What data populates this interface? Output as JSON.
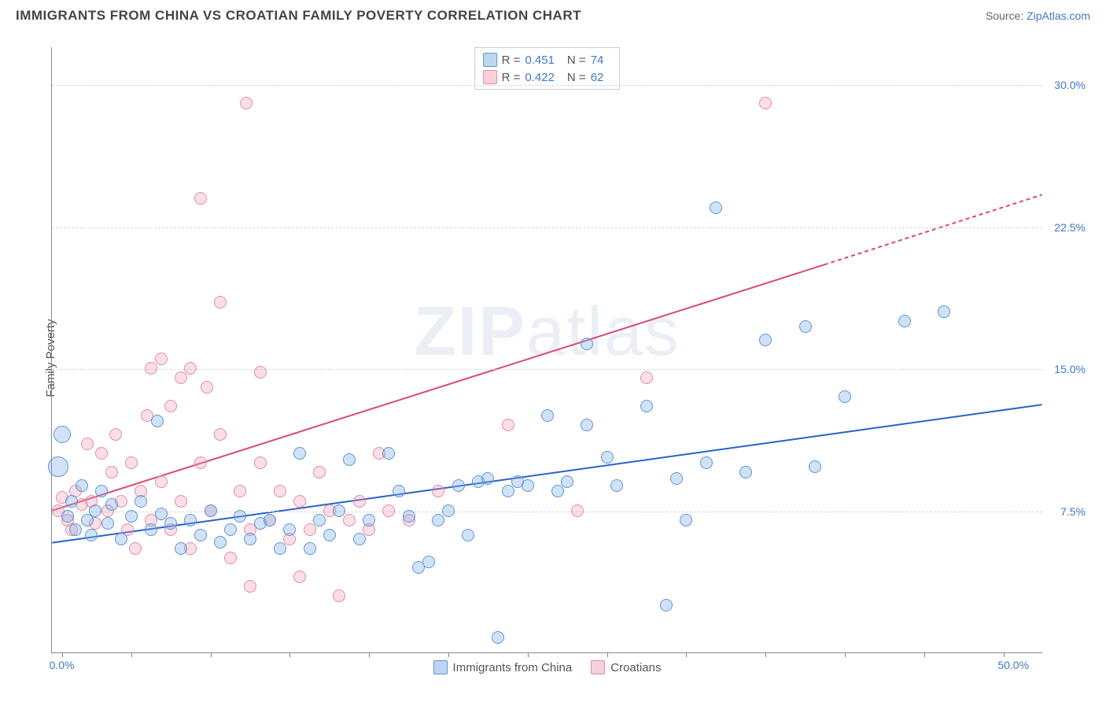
{
  "header": {
    "title": "IMMIGRANTS FROM CHINA VS CROATIAN FAMILY POVERTY CORRELATION CHART",
    "source_prefix": "Source: ",
    "source_link": "ZipAtlas.com"
  },
  "chart": {
    "type": "scatter",
    "ylabel": "Family Poverty",
    "xlim": [
      0,
      50
    ],
    "ylim": [
      0,
      32
    ],
    "xtick_positions": [
      0.5,
      4,
      8,
      12,
      16,
      20,
      24,
      28,
      32,
      36,
      40,
      44,
      48
    ],
    "xtick_labels": [
      {
        "pos": 0.5,
        "text": "0.0%"
      },
      {
        "pos": 48.5,
        "text": "50.0%"
      }
    ],
    "ytick_labels": [
      {
        "pos": 7.5,
        "text": "7.5%"
      },
      {
        "pos": 15.0,
        "text": "15.0%"
      },
      {
        "pos": 22.5,
        "text": "22.5%"
      },
      {
        "pos": 30.0,
        "text": "30.0%"
      }
    ],
    "grid_y": [
      7.5,
      15.0,
      22.5,
      30.0
    ],
    "background_color": "#ffffff",
    "grid_color": "#d5d5d5",
    "axis_color": "#888888",
    "watermark": "ZIPatlas",
    "stats": [
      {
        "r_label": "R =",
        "r_val": "0.451",
        "n_label": "N =",
        "n_val": "74",
        "color": "blue"
      },
      {
        "r_label": "R =",
        "r_val": "0.422",
        "n_label": "N =",
        "n_val": "62",
        "color": "pink"
      }
    ],
    "legend": [
      {
        "label": "Immigrants from China",
        "color": "blue"
      },
      {
        "label": "Croatians",
        "color": "pink"
      }
    ],
    "series_blue": {
      "color_fill": "rgba(126,172,230,0.35)",
      "color_stroke": "#5a96d6",
      "marker_size": 16,
      "trend": {
        "x1": 0,
        "y1": 5.8,
        "x2": 50,
        "y2": 13.1,
        "stroke": "#2862c8",
        "width": 2
      },
      "points": [
        [
          0.3,
          9.8,
          26
        ],
        [
          0.5,
          11.5,
          22
        ],
        [
          0.8,
          7.2
        ],
        [
          1.0,
          8.0
        ],
        [
          1.2,
          6.5
        ],
        [
          1.5,
          8.8
        ],
        [
          1.8,
          7.0
        ],
        [
          2.0,
          6.2
        ],
        [
          2.2,
          7.5
        ],
        [
          2.5,
          8.5
        ],
        [
          2.8,
          6.8
        ],
        [
          3.0,
          7.8
        ],
        [
          3.5,
          6.0
        ],
        [
          4.0,
          7.2
        ],
        [
          4.5,
          8.0
        ],
        [
          5.0,
          6.5
        ],
        [
          5.3,
          12.2
        ],
        [
          5.5,
          7.3
        ],
        [
          6.0,
          6.8
        ],
        [
          6.5,
          5.5
        ],
        [
          7.0,
          7.0
        ],
        [
          7.5,
          6.2
        ],
        [
          8.0,
          7.5
        ],
        [
          8.5,
          5.8
        ],
        [
          9.0,
          6.5
        ],
        [
          9.5,
          7.2
        ],
        [
          10.0,
          6.0
        ],
        [
          10.5,
          6.8
        ],
        [
          11.0,
          7.0
        ],
        [
          11.5,
          5.5
        ],
        [
          12.0,
          6.5
        ],
        [
          12.5,
          10.5
        ],
        [
          13.0,
          5.5
        ],
        [
          13.5,
          7.0
        ],
        [
          14.0,
          6.2
        ],
        [
          14.5,
          7.5
        ],
        [
          15.0,
          10.2
        ],
        [
          15.5,
          6.0
        ],
        [
          16.0,
          7.0
        ],
        [
          17.0,
          10.5
        ],
        [
          17.5,
          8.5
        ],
        [
          18.0,
          7.2
        ],
        [
          18.5,
          4.5
        ],
        [
          19.0,
          4.8
        ],
        [
          19.5,
          7.0
        ],
        [
          20.0,
          7.5
        ],
        [
          20.5,
          8.8
        ],
        [
          21.0,
          6.2
        ],
        [
          21.5,
          9.0
        ],
        [
          22.0,
          9.2
        ],
        [
          22.5,
          0.8
        ],
        [
          23.0,
          8.5
        ],
        [
          23.5,
          9.0
        ],
        [
          24.0,
          8.8
        ],
        [
          25.0,
          12.5
        ],
        [
          25.5,
          8.5
        ],
        [
          26.0,
          9.0
        ],
        [
          27.0,
          12.0
        ],
        [
          27.0,
          16.3
        ],
        [
          28.0,
          10.3
        ],
        [
          28.5,
          8.8
        ],
        [
          30.0,
          13.0
        ],
        [
          31.0,
          2.5
        ],
        [
          31.5,
          9.2
        ],
        [
          32.0,
          7.0
        ],
        [
          33.0,
          10.0
        ],
        [
          33.5,
          23.5
        ],
        [
          35.0,
          9.5
        ],
        [
          36.0,
          16.5
        ],
        [
          38.0,
          17.2
        ],
        [
          38.5,
          9.8
        ],
        [
          40.0,
          13.5
        ],
        [
          43.0,
          17.5
        ],
        [
          45.0,
          18.0
        ]
      ]
    },
    "series_pink": {
      "color_fill": "rgba(240,150,175,0.3)",
      "color_stroke": "#e38ba5",
      "marker_size": 16,
      "trend": {
        "x1": 0,
        "y1": 7.5,
        "x2": 39,
        "y2": 20.5,
        "stroke": "#d94a72",
        "width": 2,
        "dash_from_x": 39,
        "dash_to": {
          "x2": 50,
          "y2": 24.2
        }
      },
      "points": [
        [
          0.3,
          7.5
        ],
        [
          0.5,
          8.2
        ],
        [
          0.8,
          7.0
        ],
        [
          1.0,
          6.5
        ],
        [
          1.2,
          8.5
        ],
        [
          1.5,
          7.8
        ],
        [
          1.8,
          11.0
        ],
        [
          2.0,
          8.0
        ],
        [
          2.2,
          6.8
        ],
        [
          2.5,
          10.5
        ],
        [
          2.8,
          7.5
        ],
        [
          3.0,
          9.5
        ],
        [
          3.2,
          11.5
        ],
        [
          3.5,
          8.0
        ],
        [
          3.8,
          6.5
        ],
        [
          4.0,
          10.0
        ],
        [
          4.2,
          5.5
        ],
        [
          4.5,
          8.5
        ],
        [
          4.8,
          12.5
        ],
        [
          5.0,
          7.0
        ],
        [
          5.0,
          15.0
        ],
        [
          5.5,
          9.0
        ],
        [
          5.5,
          15.5
        ],
        [
          6.0,
          6.5
        ],
        [
          6.0,
          13.0
        ],
        [
          6.5,
          8.0
        ],
        [
          6.5,
          14.5
        ],
        [
          7.0,
          5.5
        ],
        [
          7.0,
          15.0
        ],
        [
          7.5,
          10.0
        ],
        [
          7.5,
          24.0
        ],
        [
          7.8,
          14.0
        ],
        [
          8.0,
          7.5
        ],
        [
          8.5,
          18.5
        ],
        [
          8.5,
          11.5
        ],
        [
          9.0,
          5.0
        ],
        [
          9.5,
          8.5
        ],
        [
          9.8,
          29.0
        ],
        [
          10.0,
          6.5
        ],
        [
          10.0,
          3.5
        ],
        [
          10.5,
          10.0
        ],
        [
          10.5,
          14.8
        ],
        [
          11.0,
          7.0
        ],
        [
          11.5,
          8.5
        ],
        [
          12.0,
          6.0
        ],
        [
          12.5,
          4.0
        ],
        [
          12.5,
          8.0
        ],
        [
          13.0,
          6.5
        ],
        [
          13.5,
          9.5
        ],
        [
          14.0,
          7.5
        ],
        [
          14.5,
          3.0
        ],
        [
          15.0,
          7.0
        ],
        [
          15.5,
          8.0
        ],
        [
          16.0,
          6.5
        ],
        [
          16.5,
          10.5
        ],
        [
          17.0,
          7.5
        ],
        [
          18.0,
          7.0
        ],
        [
          19.5,
          8.5
        ],
        [
          23.0,
          12.0
        ],
        [
          26.5,
          7.5
        ],
        [
          30.0,
          14.5
        ],
        [
          36.0,
          29.0
        ]
      ]
    }
  }
}
